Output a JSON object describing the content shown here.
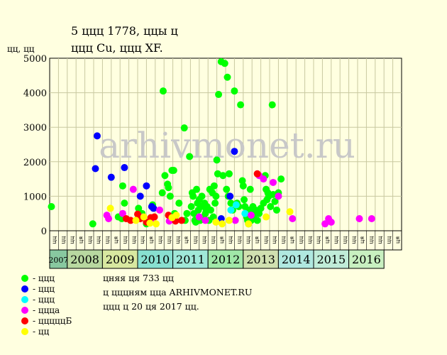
{
  "title_line1": "5 ццц 1778, ццы ц",
  "title_line2": "ццц Cu, ццц XF.",
  "ylabel": "цц, цц",
  "notes": [
    "цняя ця 733 цц",
    "ц цццням цца ARHIVMONET.RU",
    "ццц ц 20 ця 2017 цц."
  ],
  "watermark": "arhivmonet.ru",
  "colors": {
    "green": "#00ff00",
    "blue": "#0000ff",
    "cyan": "#00ffff",
    "magenta": "#ff00ff",
    "red": "#ff0000",
    "yellow": "#ffff00",
    "plot_bg": "#ffffe0",
    "grid": "#c8c8a0",
    "watermark": "#c8c8c8"
  },
  "legend": [
    {
      "color": "#00ff00",
      "label": "- ццц"
    },
    {
      "color": "#0000ff",
      "label": "- ццц"
    },
    {
      "color": "#00ffff",
      "label": "- ццц"
    },
    {
      "color": "#ff00ff",
      "label": "- ццца"
    },
    {
      "color": "#ff0000",
      "label": "- цццццБ"
    },
    {
      "color": "#ffff00",
      "label": "- цц"
    }
  ],
  "chart_data": {
    "type": "scatter",
    "ylim": [
      0,
      5000
    ],
    "yticks": [
      0,
      1000,
      2000,
      3000,
      4000,
      5000
    ],
    "grid": true,
    "quarter_labels": [
      "цц",
      "цц",
      "цц",
      "ця",
      "цц",
      "цц",
      "цц",
      "ця",
      "цц",
      "цц",
      "цц",
      "ця",
      "цц",
      "цц",
      "цц",
      "ця",
      "цц",
      "цц",
      "цц",
      "ця",
      "цц",
      "цц",
      "цц",
      "ця",
      "цц",
      "цц",
      "цц",
      "ця",
      "цц",
      "цц",
      "цц",
      "ця",
      "цц",
      "цц",
      "цц",
      "ця",
      "цц",
      "цц",
      "цц",
      "ця"
    ],
    "years": [
      {
        "label": "2007",
        "start": 0,
        "span": 2,
        "color": "#88c8a0"
      },
      {
        "label": "2008",
        "start": 2,
        "span": 4,
        "color": "#b8d8a0"
      },
      {
        "label": "2009",
        "start": 6,
        "span": 4,
        "color": "#d8e8a0"
      },
      {
        "label": "2010",
        "start": 10,
        "span": 4,
        "color": "#88e0d0"
      },
      {
        "label": "2011",
        "start": 14,
        "span": 4,
        "color": "#a0e8d8"
      },
      {
        "label": "2012",
        "start": 18,
        "span": 4,
        "color": "#a0e8a8"
      },
      {
        "label": "2013",
        "start": 22,
        "span": 4,
        "color": "#d0e0b0"
      },
      {
        "label": "2014",
        "start": 26,
        "span": 4,
        "color": "#b0e8e0"
      },
      {
        "label": "2015",
        "start": 30,
        "span": 4,
        "color": "#c0ecd8"
      },
      {
        "label": "2016",
        "start": 34,
        "span": 4,
        "color": "#c8f0c0"
      }
    ],
    "x_unit": "quarter index from 2007 Q3",
    "series": [
      {
        "color": "#00ff00",
        "points": [
          [
            0.2,
            700
          ],
          [
            4.9,
            200
          ],
          [
            7.8,
            400
          ],
          [
            8.3,
            1300
          ],
          [
            8.5,
            800
          ],
          [
            8.2,
            350
          ],
          [
            10.1,
            650
          ],
          [
            10.5,
            500
          ],
          [
            11,
            200
          ],
          [
            11.7,
            750
          ],
          [
            12.8,
            1100
          ],
          [
            12.9,
            4050
          ],
          [
            13.1,
            1600
          ],
          [
            13.4,
            1350
          ],
          [
            13.5,
            1250
          ],
          [
            13.7,
            1000
          ],
          [
            13.9,
            1750
          ],
          [
            14.1,
            1750
          ],
          [
            14.2,
            500
          ],
          [
            14.3,
            300
          ],
          [
            14.7,
            800
          ],
          [
            15.3,
            2980
          ],
          [
            15.4,
            300
          ],
          [
            15.6,
            500
          ],
          [
            15.9,
            2150
          ],
          [
            16.1,
            700
          ],
          [
            16.2,
            1100
          ],
          [
            16.3,
            1000
          ],
          [
            16.4,
            500
          ],
          [
            16.5,
            300
          ],
          [
            16.6,
            250
          ],
          [
            16.7,
            1200
          ],
          [
            16.8,
            800
          ],
          [
            16.9,
            600
          ],
          [
            17.0,
            900
          ],
          [
            17.1,
            300
          ],
          [
            17.2,
            700
          ],
          [
            17.3,
            1000
          ],
          [
            17.5,
            400
          ],
          [
            17.6,
            800
          ],
          [
            17.7,
            500
          ],
          [
            17.8,
            600
          ],
          [
            17.9,
            700
          ],
          [
            18.1,
            300
          ],
          [
            18.2,
            1200
          ],
          [
            18.3,
            600
          ],
          [
            18.5,
            1100
          ],
          [
            18.6,
            400
          ],
          [
            18.7,
            1300
          ],
          [
            18.8,
            800
          ],
          [
            18.9,
            1000
          ],
          [
            19.0,
            2050
          ],
          [
            19.1,
            1650
          ],
          [
            19.2,
            3950
          ],
          [
            19.5,
            4900
          ],
          [
            19.7,
            1600
          ],
          [
            19.9,
            4850
          ],
          [
            20.1,
            1200
          ],
          [
            20.2,
            4450
          ],
          [
            20.3,
            1000
          ],
          [
            20.4,
            1650
          ],
          [
            20.6,
            800
          ],
          [
            20.8,
            600
          ],
          [
            21.0,
            4050
          ],
          [
            21.3,
            800
          ],
          [
            21.5,
            700
          ],
          [
            21.7,
            3650
          ],
          [
            21.9,
            1450
          ],
          [
            22.0,
            1300
          ],
          [
            22.1,
            900
          ],
          [
            22.2,
            700
          ],
          [
            22.3,
            500
          ],
          [
            22.4,
            400
          ],
          [
            22.5,
            300
          ],
          [
            22.6,
            200
          ],
          [
            22.7,
            600
          ],
          [
            22.8,
            1200
          ],
          [
            22.9,
            300
          ],
          [
            23.0,
            500
          ],
          [
            23.1,
            700
          ],
          [
            23.2,
            400
          ],
          [
            23.4,
            600
          ],
          [
            23.6,
            300
          ],
          [
            23.8,
            500
          ],
          [
            24.0,
            650
          ],
          [
            24.3,
            800
          ],
          [
            24.5,
            1600
          ],
          [
            24.6,
            1200
          ],
          [
            24.7,
            900
          ],
          [
            24.8,
            1100
          ],
          [
            24.9,
            1000
          ],
          [
            25.1,
            700
          ],
          [
            25.3,
            3650
          ],
          [
            25.4,
            1050
          ],
          [
            25.6,
            850
          ],
          [
            25.8,
            600
          ],
          [
            26.0,
            1100
          ],
          [
            26.3,
            1500
          ]
        ]
      },
      {
        "color": "#0000ff",
        "points": [
          [
            5.2,
            1800
          ],
          [
            5.4,
            2750
          ],
          [
            7.0,
            1550
          ],
          [
            8.5,
            1830
          ],
          [
            10.3,
            1000
          ],
          [
            11.0,
            1300
          ],
          [
            11.6,
            700
          ],
          [
            11.8,
            650
          ],
          [
            19.5,
            350
          ],
          [
            20.5,
            1000
          ],
          [
            21.0,
            2300
          ]
        ]
      },
      {
        "color": "#00ffff",
        "points": [
          [
            20.6,
            600
          ],
          [
            21.2,
            750
          ],
          [
            22.2,
            500
          ]
        ]
      },
      {
        "color": "#ff00ff",
        "points": [
          [
            6.5,
            450
          ],
          [
            6.7,
            350
          ],
          [
            8.3,
            500
          ],
          [
            9.5,
            1200
          ],
          [
            10.6,
            400
          ],
          [
            11.5,
            250
          ],
          [
            12.5,
            600
          ],
          [
            13.6,
            280
          ],
          [
            14.2,
            400
          ],
          [
            17.0,
            400
          ],
          [
            17.7,
            300
          ],
          [
            21.1,
            300
          ],
          [
            22.9,
            450
          ],
          [
            23.8,
            1600
          ],
          [
            24.3,
            1500
          ],
          [
            25.4,
            1400
          ],
          [
            26.0,
            1000
          ],
          [
            27.6,
            350
          ],
          [
            31.3,
            200
          ],
          [
            31.7,
            350
          ],
          [
            32.0,
            250
          ],
          [
            35.2,
            350
          ],
          [
            36.6,
            350
          ]
        ]
      },
      {
        "color": "#ff0000",
        "points": [
          [
            8.7,
            350
          ],
          [
            9.2,
            300
          ],
          [
            10.0,
            480
          ],
          [
            10.3,
            350
          ],
          [
            11.0,
            250
          ],
          [
            11.5,
            380
          ],
          [
            11.9,
            400
          ],
          [
            13.5,
            450
          ],
          [
            14.3,
            280
          ],
          [
            15.0,
            300
          ],
          [
            23.6,
            1650
          ]
        ]
      },
      {
        "color": "#ffff00",
        "points": [
          [
            6.9,
            650
          ],
          [
            9.8,
            300
          ],
          [
            10.7,
            400
          ],
          [
            11.4,
            220
          ],
          [
            12.1,
            200
          ],
          [
            13.9,
            380
          ],
          [
            14.4,
            450
          ],
          [
            18.9,
            250
          ],
          [
            19.6,
            200
          ],
          [
            20.4,
            300
          ],
          [
            22.6,
            200
          ],
          [
            24.6,
            400
          ],
          [
            27.3,
            550
          ]
        ]
      }
    ]
  }
}
